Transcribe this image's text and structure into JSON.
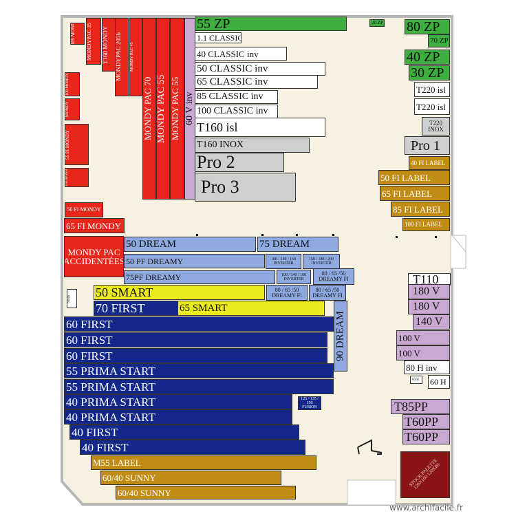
{
  "watermark": "www.archifacile.fr",
  "colors": {
    "floor": "#f7f1e1",
    "wall": "#b7b7b7",
    "red": "#e8261c",
    "blue": "#8eaae0",
    "navy": "#13288a",
    "gold": "#c08c14",
    "yellow": "#eaea1c",
    "green": "#3eae3e",
    "lilac": "#c9a8d2",
    "grey": "#cfcfcf",
    "maroon": "#8a1414"
  },
  "labels": {
    "zp55": "55 ZP",
    "zp20": "20 ZP",
    "zp80": "80 ZP",
    "zp70": "70 ZP",
    "zp40": "40 ZP",
    "zp30": "30 ZP",
    "classic_top": "1.1 CLASSIC",
    "c40": "40 CLASSIC inv",
    "c50": "50 CLASSIC inv",
    "c65": "65 CLASSIC inv",
    "c85": "85 CLASSIC inv",
    "c100": "100 CLASSIC inv",
    "t160isl": "T160 isl",
    "t160inox": "T160 INOX",
    "pro2": "Pro 2",
    "pro3": "Pro 3",
    "t220isl_a": "T220 isl",
    "t220isl_b": "T220 isl",
    "t220inox": "T220 INOX",
    "pro1": "Pro 1",
    "fi40": "40 FI LABEL",
    "fi50": "50 FI LABEL",
    "fi65": "65 FI LABEL",
    "fi85": "85 FI LABEL",
    "fi100": "100 FI LABEL",
    "tr85": "TR85 MONDY",
    "mp35": "MONDYPAC 35",
    "t160mondy": "T160 MONDY",
    "mp2056": "MONDYPAC 2056",
    "mp45": "MONDY PAC 45",
    "mp70": "MONDY PAC 70",
    "mp55a": "MONDY PAC 55",
    "mp55b": "MONDY PAC 55",
    "v60inv": "60 V inv",
    "mondy_pac_r1": "100 MONDY",
    "mondy_pac_r2": "MONDY",
    "mondy_pac_r3": "55 FI MONDY",
    "mondy_pac_r4": "40 FI MONDY",
    "fi50mondy": "50 FI MONDY",
    "fi65mondy": "65 FI MONDY",
    "accident": "MONDY PAC ACCIDENTÉES",
    "dream50": "50 DREAM",
    "dream75": "75 DREAM",
    "pfdreamy50": "50 PF DREAMY",
    "pfdreamy75": "75PF DREAMY",
    "inv1": "100 / 140 / 160 INVERTER",
    "inv2": "150 / 180 / 200 INVERTER",
    "inv3": "100 / 140 / 160 INVERTER",
    "dfi1": "80 / 65 /50 DREAMY FI",
    "dfi2": "80 / 65 /50 DREAMY FI",
    "dfi3": "80 / 65 /50 DREAMY FI",
    "smart50": "50 SMART",
    "smart65": "65 SMART",
    "first70": "70 FIRST",
    "first60a": "60 FIRST",
    "first60b": "60 FIRST",
    "first60c": "60 FIRST",
    "prima55a": "55 PRIMA START",
    "prima55b": "55 PRIMA START",
    "prima40a": "40 PRIMA START",
    "prima40b": "40 PRIMA START",
    "first40a": "40 FIRST",
    "first40b": "40 FIRST",
    "m55": "M55 LABEL",
    "sunny_a": "60/40 SUNNY",
    "sunny_b": "60/40 SUNNY",
    "dream90": "90 DREAM",
    "small_box": "125 / 135 / 150 FUSION",
    "side_note": "Stock",
    "t110": "T110",
    "v180a": "180 V",
    "v180b": "180 V",
    "v140": "140 V",
    "v100a": "100 V",
    "v100b": "100 V",
    "h80": "80 H inv",
    "h60": "60 H",
    "h60b": "60 H",
    "t85pp": "T85PP",
    "t60pp_a": "T60PP",
    "t60pp_b": "T60PP",
    "stock_palette": "STOCK PALETTE 120X100 120X80"
  }
}
